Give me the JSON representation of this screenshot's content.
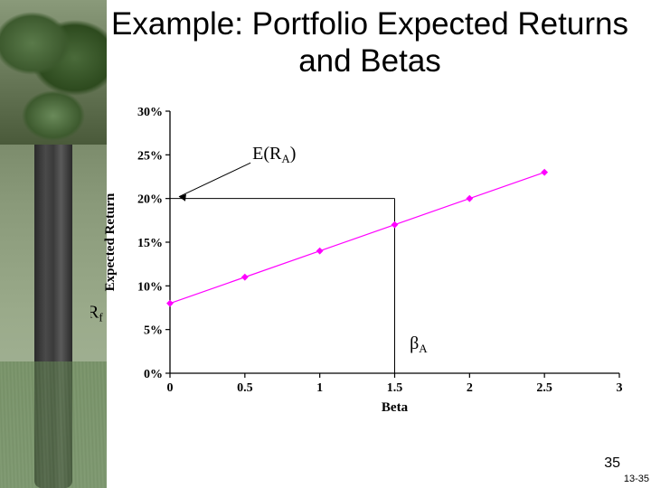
{
  "title": "Example: Portfolio Expected Returns and Betas",
  "chart": {
    "type": "scatter-with-line",
    "x_label": "Beta",
    "y_label": "Expected Return",
    "xlim": [
      0,
      3
    ],
    "ylim": [
      0,
      0.3
    ],
    "x_ticks": [
      0,
      0.5,
      1,
      1.5,
      2,
      2.5,
      3
    ],
    "x_tick_labels": [
      "0",
      "0.5",
      "1",
      "1.5",
      "2",
      "2.5",
      "3"
    ],
    "y_ticks": [
      0,
      0.05,
      0.1,
      0.15,
      0.2,
      0.25,
      0.3
    ],
    "y_tick_labels": [
      "0%",
      "5%",
      "10%",
      "15%",
      "20%",
      "25%",
      "30%"
    ],
    "points": [
      {
        "x": 0.0,
        "y": 0.08
      },
      {
        "x": 0.5,
        "y": 0.11
      },
      {
        "x": 1.0,
        "y": 0.14
      },
      {
        "x": 1.5,
        "y": 0.17
      },
      {
        "x": 2.0,
        "y": 0.2
      },
      {
        "x": 2.5,
        "y": 0.23
      }
    ],
    "line_start": {
      "x": 0.0,
      "y": 0.08
    },
    "line_end": {
      "x": 2.5,
      "y": 0.23
    },
    "marker_color": "#ff00ff",
    "marker_size": 3.2,
    "line_color": "#ff00ff",
    "line_width": 1.2,
    "axis_color": "#000000",
    "tick_len": 5,
    "background_color": "#ffffff",
    "guide_color": "#000000",
    "guide_width": 1,
    "guide_v_x": 1.5,
    "guide_h_y": 0.2,
    "annotations": {
      "Rf": {
        "text": "R",
        "sub": "f"
      },
      "ERA": {
        "text": "E(R",
        "sub": "A",
        "tail": ")"
      },
      "betaA": {
        "sym": "β",
        "sub": "A"
      }
    },
    "arrow_color": "#000000"
  },
  "page_number": "35",
  "page_number_small": "13-35"
}
